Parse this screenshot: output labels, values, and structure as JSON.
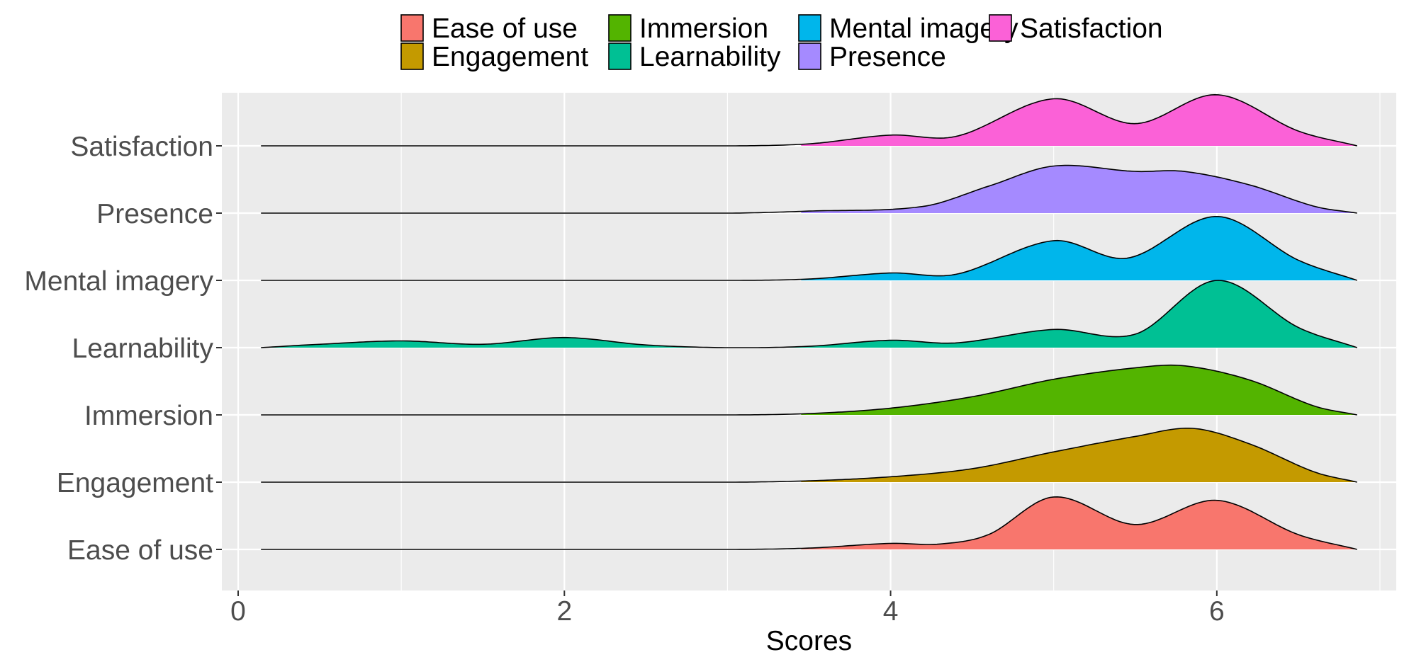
{
  "chart_data": {
    "type": "ridgeline",
    "xlabel": "Scores",
    "ylabel": "",
    "xlim": [
      -0.1,
      7.1
    ],
    "x_ticks": [
      0,
      2,
      4,
      6
    ],
    "x_minor_ticks": [
      1,
      3,
      5,
      7
    ],
    "density_x_range": [
      0.14,
      6.86
    ],
    "legend_position": "top",
    "panel_background": "#ebebeb",
    "grid": true,
    "categories": [
      "Ease of use",
      "Engagement",
      "Immersion",
      "Learnability",
      "Mental imagery",
      "Presence",
      "Satisfaction"
    ],
    "series": [
      {
        "name": "Ease of use",
        "color": "#F8766D",
        "fill_start": 3.45,
        "density": [
          [
            0.14,
            0
          ],
          [
            3.0,
            0
          ],
          [
            3.5,
            0.02
          ],
          [
            4.0,
            0.09
          ],
          [
            4.3,
            0.08
          ],
          [
            4.6,
            0.22
          ],
          [
            5.0,
            0.78
          ],
          [
            5.5,
            0.37
          ],
          [
            6.0,
            0.73
          ],
          [
            6.5,
            0.22
          ],
          [
            6.86,
            0
          ]
        ]
      },
      {
        "name": "Engagement",
        "color": "#C49A00",
        "fill_start": 3.45,
        "density": [
          [
            0.14,
            0
          ],
          [
            3.0,
            0
          ],
          [
            3.5,
            0.02
          ],
          [
            4.0,
            0.08
          ],
          [
            4.5,
            0.2
          ],
          [
            5.0,
            0.45
          ],
          [
            5.5,
            0.68
          ],
          [
            5.85,
            0.8
          ],
          [
            6.2,
            0.57
          ],
          [
            6.6,
            0.15
          ],
          [
            6.86,
            0
          ]
        ]
      },
      {
        "name": "Immersion",
        "color": "#53B400",
        "fill_start": 3.45,
        "density": [
          [
            0.14,
            0
          ],
          [
            3.0,
            0
          ],
          [
            3.5,
            0.02
          ],
          [
            4.0,
            0.1
          ],
          [
            4.5,
            0.27
          ],
          [
            5.0,
            0.53
          ],
          [
            5.5,
            0.7
          ],
          [
            5.8,
            0.73
          ],
          [
            6.2,
            0.52
          ],
          [
            6.6,
            0.13
          ],
          [
            6.86,
            0
          ]
        ]
      },
      {
        "name": "Learnability",
        "color": "#00C094",
        "fill_start": 0.14,
        "density": [
          [
            0.14,
            0
          ],
          [
            0.5,
            0.05
          ],
          [
            1.0,
            0.1
          ],
          [
            1.5,
            0.05
          ],
          [
            2.0,
            0.15
          ],
          [
            2.5,
            0.04
          ],
          [
            3.0,
            0
          ],
          [
            3.5,
            0.02
          ],
          [
            4.0,
            0.11
          ],
          [
            4.4,
            0.07
          ],
          [
            5.0,
            0.27
          ],
          [
            5.5,
            0.2
          ],
          [
            6.0,
            1.0
          ],
          [
            6.5,
            0.3
          ],
          [
            6.86,
            0
          ]
        ]
      },
      {
        "name": "Mental imagery",
        "color": "#00B6EB",
        "fill_start": 3.45,
        "density": [
          [
            0.14,
            0
          ],
          [
            3.0,
            0
          ],
          [
            3.5,
            0.02
          ],
          [
            4.0,
            0.11
          ],
          [
            4.4,
            0.09
          ],
          [
            5.0,
            0.59
          ],
          [
            5.45,
            0.33
          ],
          [
            6.0,
            0.95
          ],
          [
            6.5,
            0.3
          ],
          [
            6.86,
            0
          ]
        ]
      },
      {
        "name": "Presence",
        "color": "#A58AFF",
        "fill_start": 3.45,
        "density": [
          [
            0.14,
            0
          ],
          [
            3.0,
            0
          ],
          [
            3.5,
            0.03
          ],
          [
            4.2,
            0.1
          ],
          [
            4.6,
            0.4
          ],
          [
            5.0,
            0.7
          ],
          [
            5.5,
            0.62
          ],
          [
            5.8,
            0.62
          ],
          [
            6.2,
            0.42
          ],
          [
            6.6,
            0.1
          ],
          [
            6.86,
            0
          ]
        ]
      },
      {
        "name": "Satisfaction",
        "color": "#FB61D7",
        "fill_start": 3.45,
        "density": [
          [
            0.14,
            0
          ],
          [
            3.0,
            0
          ],
          [
            3.5,
            0.03
          ],
          [
            4.0,
            0.16
          ],
          [
            4.4,
            0.14
          ],
          [
            5.0,
            0.7
          ],
          [
            5.5,
            0.33
          ],
          [
            6.0,
            0.76
          ],
          [
            6.5,
            0.22
          ],
          [
            6.86,
            0
          ]
        ]
      }
    ]
  }
}
